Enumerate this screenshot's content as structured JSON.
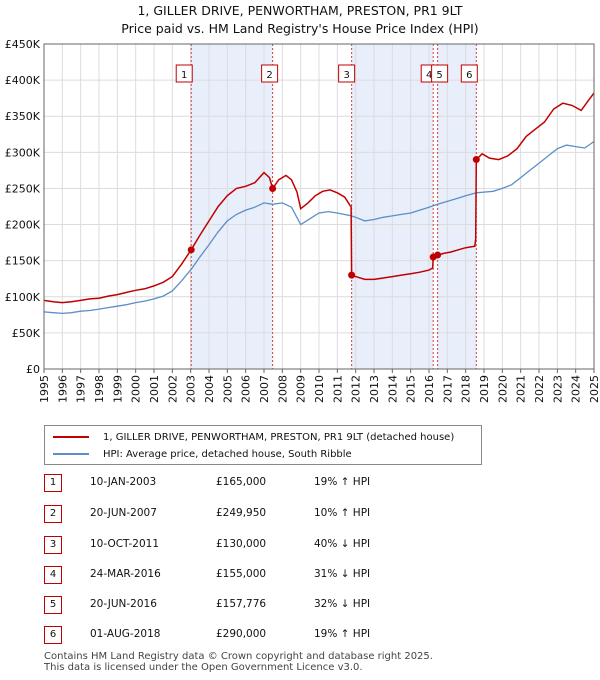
{
  "title_line1": "1, GILLER DRIVE, PENWORTHAM, PRESTON, PR1 9LT",
  "title_line2": "Price paid vs. HM Land Registry's House Price Index (HPI)",
  "colors": {
    "property": "#c00000",
    "hpi": "#5b8fc9",
    "band": "#e8eefa",
    "vline": "#d04040"
  },
  "chart_data": {
    "type": "line",
    "title": "Price paid vs. HM Land Registry's House Price Index (HPI)",
    "xlim": [
      1995,
      2025
    ],
    "ylim": [
      0,
      450000
    ],
    "x_ticks": [
      "1995",
      "1996",
      "1997",
      "1998",
      "1999",
      "2000",
      "2001",
      "2002",
      "2003",
      "2004",
      "2005",
      "2006",
      "2007",
      "2008",
      "2009",
      "2010",
      "2011",
      "2012",
      "2013",
      "2014",
      "2015",
      "2016",
      "2017",
      "2018",
      "2019",
      "2020",
      "2021",
      "2022",
      "2023",
      "2024",
      "2025"
    ],
    "y_ticks": [
      {
        "value": 0,
        "label": "£0"
      },
      {
        "value": 50000,
        "label": "£50K"
      },
      {
        "value": 100000,
        "label": "£100K"
      },
      {
        "value": 150000,
        "label": "£150K"
      },
      {
        "value": 200000,
        "label": "£200K"
      },
      {
        "value": 250000,
        "label": "£250K"
      },
      {
        "value": 300000,
        "label": "£300K"
      },
      {
        "value": 350000,
        "label": "£350K"
      },
      {
        "value": 400000,
        "label": "£400K"
      },
      {
        "value": 450000,
        "label": "£450K"
      }
    ],
    "grid": true,
    "shaded_bands": [
      [
        2003.03,
        2007.47
      ],
      [
        2011.78,
        2016.23
      ],
      [
        2016.47,
        2018.58
      ]
    ],
    "series": [
      {
        "name": "1, GILLER DRIVE, PENWORTHAM, PRESTON, PR1 9LT (detached house)",
        "points": [
          [
            1995.0,
            95000
          ],
          [
            1995.5,
            93000
          ],
          [
            1996.0,
            92000
          ],
          [
            1996.5,
            93000
          ],
          [
            1997.0,
            95000
          ],
          [
            1997.5,
            97000
          ],
          [
            1998.0,
            98000
          ],
          [
            1998.5,
            101000
          ],
          [
            1999.0,
            103000
          ],
          [
            1999.5,
            106000
          ],
          [
            2000.0,
            109000
          ],
          [
            2000.5,
            111000
          ],
          [
            2001.0,
            115000
          ],
          [
            2001.5,
            120000
          ],
          [
            2002.0,
            128000
          ],
          [
            2002.5,
            145000
          ],
          [
            2003.03,
            165000
          ],
          [
            2003.5,
            185000
          ],
          [
            2004.0,
            205000
          ],
          [
            2004.5,
            225000
          ],
          [
            2005.0,
            240000
          ],
          [
            2005.5,
            250000
          ],
          [
            2006.0,
            253000
          ],
          [
            2006.5,
            258000
          ],
          [
            2007.0,
            272000
          ],
          [
            2007.3,
            265000
          ],
          [
            2007.47,
            249950
          ],
          [
            2007.8,
            262000
          ],
          [
            2008.2,
            268000
          ],
          [
            2008.5,
            262000
          ],
          [
            2008.8,
            245000
          ],
          [
            2009.0,
            222000
          ],
          [
            2009.4,
            230000
          ],
          [
            2009.8,
            240000
          ],
          [
            2010.2,
            246000
          ],
          [
            2010.6,
            248000
          ],
          [
            2011.0,
            244000
          ],
          [
            2011.4,
            238000
          ],
          [
            2011.7,
            226000
          ],
          [
            2011.75,
            225000
          ],
          [
            2011.78,
            130000
          ],
          [
            2012.0,
            128000
          ],
          [
            2012.5,
            124000
          ],
          [
            2013.0,
            124000
          ],
          [
            2013.5,
            126000
          ],
          [
            2014.0,
            128000
          ],
          [
            2014.5,
            130000
          ],
          [
            2015.0,
            132000
          ],
          [
            2015.5,
            134000
          ],
          [
            2016.0,
            137000
          ],
          [
            2016.2,
            140000
          ],
          [
            2016.23,
            155000
          ],
          [
            2016.47,
            157776
          ],
          [
            2016.8,
            160000
          ],
          [
            2017.2,
            162000
          ],
          [
            2017.6,
            165000
          ],
          [
            2018.0,
            168000
          ],
          [
            2018.5,
            170000
          ],
          [
            2018.55,
            180000
          ],
          [
            2018.58,
            290000
          ],
          [
            2018.9,
            298000
          ],
          [
            2019.3,
            292000
          ],
          [
            2019.8,
            290000
          ],
          [
            2020.3,
            295000
          ],
          [
            2020.8,
            305000
          ],
          [
            2021.3,
            322000
          ],
          [
            2021.8,
            332000
          ],
          [
            2022.3,
            342000
          ],
          [
            2022.8,
            360000
          ],
          [
            2023.3,
            368000
          ],
          [
            2023.8,
            365000
          ],
          [
            2024.3,
            358000
          ],
          [
            2024.7,
            372000
          ],
          [
            2025.0,
            382000
          ]
        ]
      },
      {
        "name": "HPI: Average price, detached house, South Ribble",
        "points": [
          [
            1995.0,
            79000
          ],
          [
            1995.5,
            78000
          ],
          [
            1996.0,
            77000
          ],
          [
            1996.5,
            78000
          ],
          [
            1997.0,
            80000
          ],
          [
            1997.5,
            81000
          ],
          [
            1998.0,
            83000
          ],
          [
            1998.5,
            85000
          ],
          [
            1999.0,
            87000
          ],
          [
            1999.5,
            89000
          ],
          [
            2000.0,
            92000
          ],
          [
            2000.5,
            94000
          ],
          [
            2001.0,
            97000
          ],
          [
            2001.5,
            101000
          ],
          [
            2002.0,
            108000
          ],
          [
            2002.5,
            122000
          ],
          [
            2003.03,
            138000
          ],
          [
            2003.5,
            155000
          ],
          [
            2004.0,
            172000
          ],
          [
            2004.5,
            190000
          ],
          [
            2005.0,
            205000
          ],
          [
            2005.5,
            214000
          ],
          [
            2006.0,
            220000
          ],
          [
            2006.5,
            224000
          ],
          [
            2007.0,
            230000
          ],
          [
            2007.47,
            228000
          ],
          [
            2008.0,
            230000
          ],
          [
            2008.5,
            224000
          ],
          [
            2009.0,
            200000
          ],
          [
            2009.5,
            208000
          ],
          [
            2010.0,
            216000
          ],
          [
            2010.5,
            218000
          ],
          [
            2011.0,
            216000
          ],
          [
            2011.78,
            212000
          ],
          [
            2012.0,
            210000
          ],
          [
            2012.5,
            205000
          ],
          [
            2013.0,
            207000
          ],
          [
            2013.5,
            210000
          ],
          [
            2014.0,
            212000
          ],
          [
            2014.5,
            214000
          ],
          [
            2015.0,
            216000
          ],
          [
            2015.5,
            220000
          ],
          [
            2016.0,
            224000
          ],
          [
            2016.23,
            226000
          ],
          [
            2016.47,
            228000
          ],
          [
            2017.0,
            232000
          ],
          [
            2017.5,
            236000
          ],
          [
            2018.0,
            240000
          ],
          [
            2018.58,
            244000
          ],
          [
            2019.0,
            245000
          ],
          [
            2019.5,
            246000
          ],
          [
            2020.0,
            250000
          ],
          [
            2020.5,
            255000
          ],
          [
            2021.0,
            265000
          ],
          [
            2021.5,
            275000
          ],
          [
            2022.0,
            285000
          ],
          [
            2022.5,
            295000
          ],
          [
            2023.0,
            305000
          ],
          [
            2023.5,
            310000
          ],
          [
            2024.0,
            308000
          ],
          [
            2024.5,
            306000
          ],
          [
            2025.0,
            315000
          ]
        ]
      }
    ],
    "sales": [
      {
        "num": "1",
        "x": 2003.03,
        "y": 165000
      },
      {
        "num": "2",
        "x": 2007.47,
        "y": 249950
      },
      {
        "num": "3",
        "x": 2011.78,
        "y": 130000
      },
      {
        "num": "4",
        "x": 2016.23,
        "y": 155000
      },
      {
        "num": "5",
        "x": 2016.47,
        "y": 157776
      },
      {
        "num": "6",
        "x": 2018.58,
        "y": 290000
      }
    ]
  },
  "legend": {
    "property": "1, GILLER DRIVE, PENWORTHAM, PRESTON, PR1 9LT (detached house)",
    "hpi": "HPI: Average price, detached house, South Ribble"
  },
  "transactions": [
    {
      "num": "1",
      "date": "10-JAN-2003",
      "price": "£165,000",
      "hpi": "19% ↑ HPI"
    },
    {
      "num": "2",
      "date": "20-JUN-2007",
      "price": "£249,950",
      "hpi": "10% ↑ HPI"
    },
    {
      "num": "3",
      "date": "10-OCT-2011",
      "price": "£130,000",
      "hpi": "40% ↓ HPI"
    },
    {
      "num": "4",
      "date": "24-MAR-2016",
      "price": "£155,000",
      "hpi": "31% ↓ HPI"
    },
    {
      "num": "5",
      "date": "20-JUN-2016",
      "price": "£157,776",
      "hpi": "32% ↓ HPI"
    },
    {
      "num": "6",
      "date": "01-AUG-2018",
      "price": "£290,000",
      "hpi": "19% ↑ HPI"
    }
  ],
  "footer_line1": "Contains HM Land Registry data © Crown copyright and database right 2025.",
  "footer_line2": "This data is licensed under the Open Government Licence v3.0."
}
